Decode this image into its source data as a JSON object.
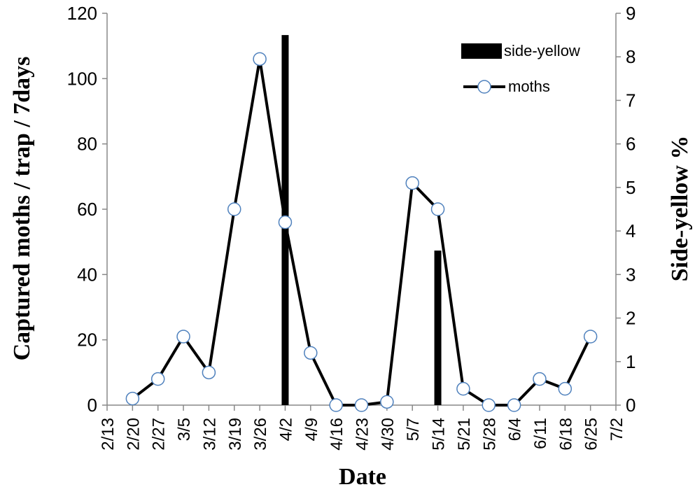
{
  "chart_data": {
    "type": "line",
    "categories": [
      "2/13",
      "2/20",
      "2/27",
      "3/5",
      "3/12",
      "3/19",
      "3/26",
      "4/2",
      "4/9",
      "4/16",
      "4/23",
      "4/30",
      "5/7",
      "5/14",
      "5/21",
      "5/28",
      "6/4",
      "6/11",
      "6/18",
      "6/25",
      "7/2"
    ],
    "xlabel": "Date",
    "ylabel_left": "Captured moths / trap / 7days",
    "ylabel_right": "Side-yellow %",
    "ylim_left": [
      0,
      120
    ],
    "yticks_left": [
      0,
      20,
      40,
      60,
      80,
      100,
      120
    ],
    "ylim_right": [
      0,
      9
    ],
    "yticks_right": [
      0,
      1,
      2,
      3,
      4,
      5,
      6,
      7,
      8,
      9
    ],
    "grid": false,
    "legend_position": "top-right",
    "series": [
      {
        "name": "side-yellow",
        "type": "bar",
        "axis": "right",
        "color": "#000000",
        "points": [
          {
            "x": "4/2",
            "y": 8.5
          },
          {
            "x": "5/14",
            "y": 3.55
          }
        ]
      },
      {
        "name": "moths",
        "type": "line",
        "axis": "left",
        "color": "#000000",
        "marker_fill": "#ffffff",
        "marker_stroke": "#4f81bd",
        "points": [
          {
            "x": "2/20",
            "y": 2
          },
          {
            "x": "2/27",
            "y": 8
          },
          {
            "x": "3/5",
            "y": 21
          },
          {
            "x": "3/12",
            "y": 10
          },
          {
            "x": "3/19",
            "y": 60
          },
          {
            "x": "3/26",
            "y": 106
          },
          {
            "x": "4/2",
            "y": 56
          },
          {
            "x": "4/9",
            "y": 16
          },
          {
            "x": "4/16",
            "y": 0
          },
          {
            "x": "4/23",
            "y": 0
          },
          {
            "x": "4/30",
            "y": 1
          },
          {
            "x": "5/7",
            "y": 68
          },
          {
            "x": "5/14",
            "y": 60
          },
          {
            "x": "5/21",
            "y": 5
          },
          {
            "x": "5/28",
            "y": 0
          },
          {
            "x": "6/4",
            "y": 0
          },
          {
            "x": "6/11",
            "y": 8
          },
          {
            "x": "6/18",
            "y": 5
          },
          {
            "x": "6/25",
            "y": 21
          }
        ]
      }
    ]
  }
}
